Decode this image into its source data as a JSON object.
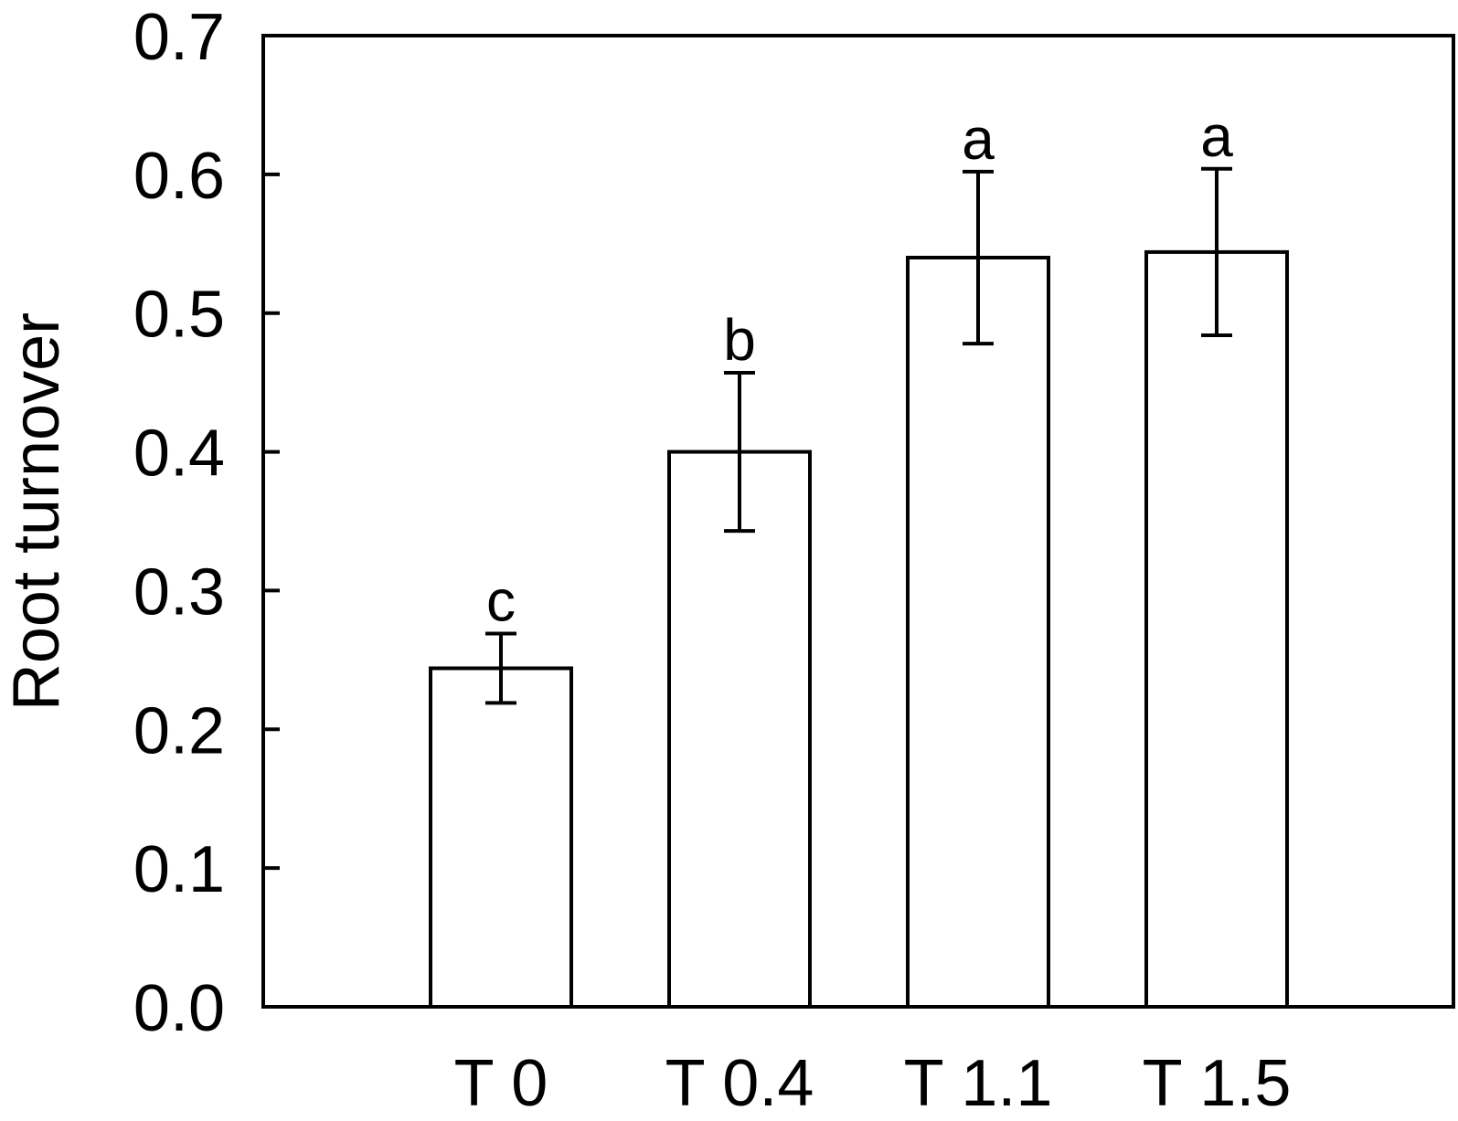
{
  "chart_data": {
    "type": "bar",
    "title": "",
    "xlabel": "",
    "ylabel": "Root turnover",
    "ylim": [
      0,
      0.7
    ],
    "yticks": [
      "0.0",
      "0.1",
      "0.2",
      "0.3",
      "0.4",
      "0.5",
      "0.6",
      "0.7"
    ],
    "categories": [
      "T 0",
      "T 0.4",
      "T 1.1",
      "T 1.5"
    ],
    "values": [
      0.244,
      0.4,
      0.54,
      0.544
    ],
    "error": [
      0.025,
      0.057,
      0.062,
      0.06
    ],
    "significance_letters": [
      "c",
      "b",
      "a",
      "a"
    ],
    "grid": false,
    "legend": "none",
    "bar_fill": "#ffffff",
    "bar_stroke": "#000000"
  }
}
